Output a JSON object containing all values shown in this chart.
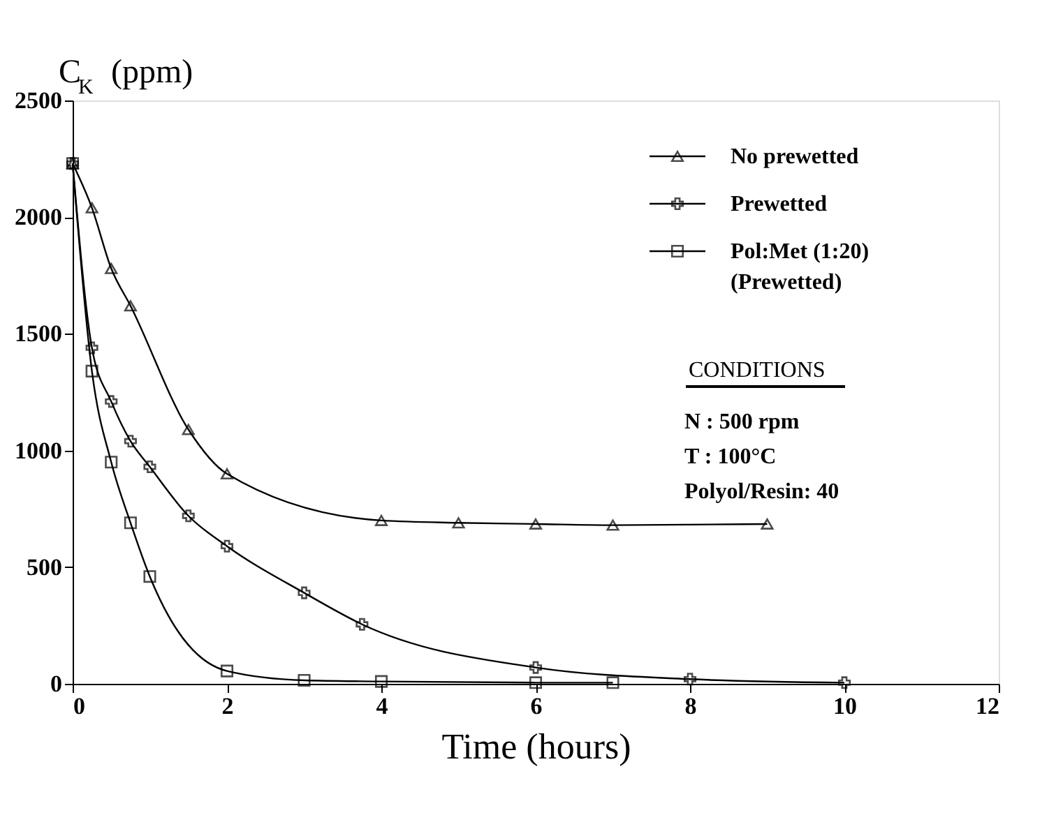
{
  "chart_data": {
    "type": "line",
    "ylabel": "C$_{K}$  (ppm)",
    "xlabel": "Time (hours)",
    "xlim": [
      0,
      12
    ],
    "xticks": [
      0,
      2,
      4,
      6,
      8,
      10,
      12
    ],
    "ylim": [
      0,
      2500
    ],
    "yticks": [
      0,
      500,
      1000,
      1500,
      2000,
      2500
    ],
    "grid": false,
    "legend": "top right",
    "line_style": "solid",
    "series": [
      {
        "name": "No prewetted",
        "color": "#000000",
        "marker": "triangle",
        "x": [
          0,
          0.25,
          0.5,
          0.75,
          1.5,
          2,
          4,
          5,
          6,
          7,
          9
        ],
        "values": [
          2230,
          2040,
          1780,
          1620,
          1090,
          900,
          700,
          690,
          685,
          680,
          685
        ]
      },
      {
        "name": "Prewetted",
        "color": "#000000",
        "marker": "cross",
        "x": [
          0,
          0.25,
          0.5,
          0.75,
          1,
          1.5,
          2,
          3,
          3.75,
          6,
          8,
          10
        ],
        "values": [
          2230,
          1440,
          1210,
          1040,
          930,
          720,
          590,
          390,
          255,
          70,
          20,
          5
        ]
      },
      {
        "name": "Pol:Met (1:20)\n(Prewetted)",
        "color": "#000000",
        "marker": "square",
        "x": [
          0,
          0.25,
          0.5,
          0.75,
          1,
          2,
          3,
          4,
          6,
          7
        ],
        "values": [
          2230,
          1340,
          950,
          690,
          460,
          55,
          15,
          10,
          5,
          5
        ]
      }
    ],
    "annotations": [
      "CONDITIONS",
      "N : 500 rpm",
      "T : 100°C",
      "Polyol/Resin: 40"
    ]
  }
}
